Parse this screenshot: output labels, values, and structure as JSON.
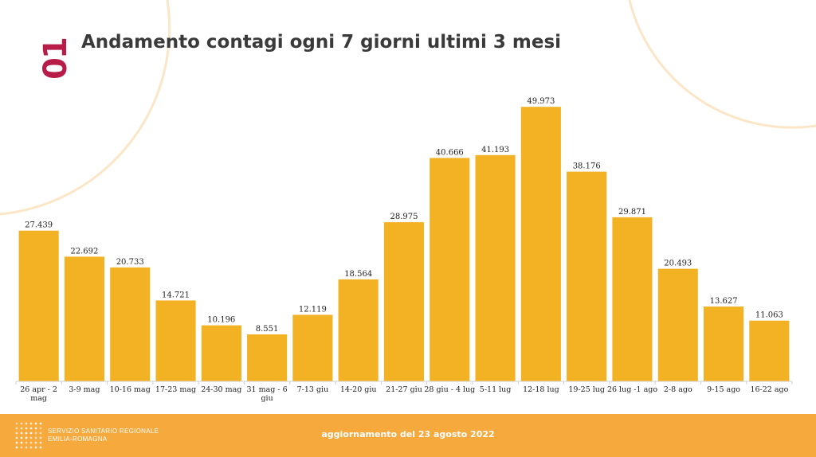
{
  "slide": {
    "number": "01",
    "title": "Andamento contagi ogni 7 giorni ultimi 3 mesi"
  },
  "footer": {
    "org_line1": "SERVIZIO SANITARIO REGIONALE",
    "org_line2": "EMILIA-ROMAGNA",
    "update_text": "aggiornamento del 23 agosto 2022",
    "background_color": "#f6a93d"
  },
  "chart_data": {
    "type": "bar",
    "title": "Andamento contagi ogni 7 giorni ultimi 3 mesi",
    "categories": [
      [
        "26 apr - 2",
        "mag"
      ],
      [
        "3-9 mag"
      ],
      [
        "10-16 mag"
      ],
      [
        "17-23 mag"
      ],
      [
        "24-30 mag"
      ],
      [
        "31 mag - 6",
        "giu"
      ],
      [
        "7-13 giu"
      ],
      [
        "14-20 giu"
      ],
      [
        "21-27 giu"
      ],
      [
        "28 giu - 4 lug"
      ],
      [
        "5-11 lug"
      ],
      [
        "12-18 lug"
      ],
      [
        "19-25 lug"
      ],
      [
        "26 lug -1 ago"
      ],
      [
        "2-8 ago"
      ],
      [
        "9-15 ago"
      ],
      [
        "16-22 ago"
      ]
    ],
    "values": [
      27439,
      22692,
      20733,
      14721,
      10196,
      8551,
      12119,
      18564,
      28975,
      40666,
      41193,
      49973,
      38176,
      29871,
      20493,
      13627,
      11063
    ],
    "value_labels": [
      "27.439",
      "22.692",
      "20.733",
      "14.721",
      "10.196",
      "8.551",
      "12.119",
      "18.564",
      "28.975",
      "40.666",
      "41.193",
      "49.973",
      "38.176",
      "29.871",
      "20.493",
      "13.627",
      "11.063"
    ],
    "ylim": [
      0,
      50000
    ],
    "bar_color": "#f3b124",
    "grid": false,
    "legend": "none"
  }
}
